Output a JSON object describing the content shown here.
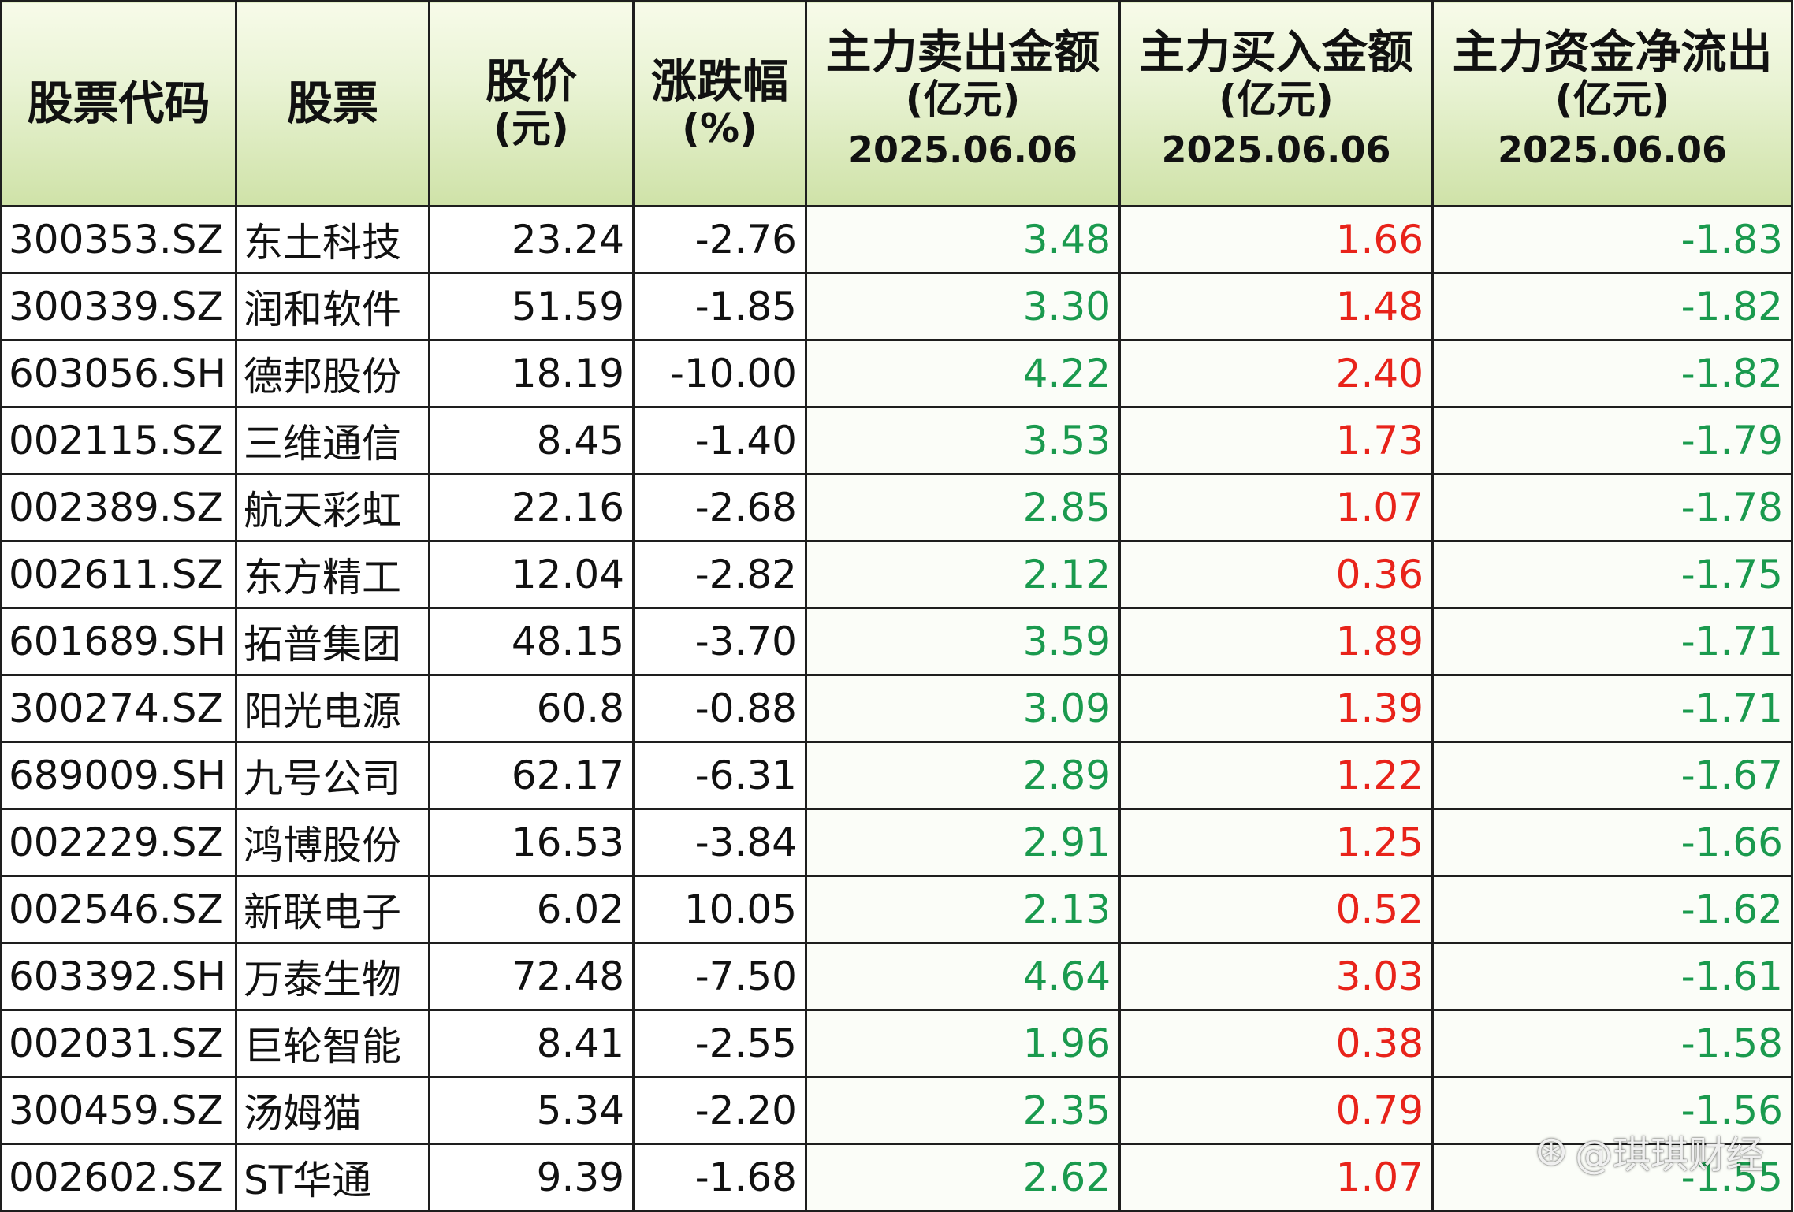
{
  "headers": {
    "code": "股票代码",
    "name": "股票",
    "price": {
      "line1": "股价",
      "line2": "(元)"
    },
    "change": {
      "line1": "涨跌幅",
      "line2": "(%)"
    },
    "sell": {
      "line1": "主力卖出金额",
      "line2": "(亿元)",
      "line3": "2025.06.06"
    },
    "buy": {
      "line1": "主力买入金额",
      "line2": "(亿元)",
      "line3": "2025.06.06"
    },
    "net": {
      "line1": "主力资金净流出",
      "line2": "(亿元)",
      "line3": "2025.06.06"
    }
  },
  "rows": [
    {
      "code": "300353.SZ",
      "name": "东土科技",
      "price": "23.24",
      "change": "-2.76",
      "sell": "3.48",
      "buy": "1.66",
      "net": "-1.83"
    },
    {
      "code": "300339.SZ",
      "name": "润和软件",
      "price": "51.59",
      "change": "-1.85",
      "sell": "3.30",
      "buy": "1.48",
      "net": "-1.82"
    },
    {
      "code": "603056.SH",
      "name": "德邦股份",
      "price": "18.19",
      "change": "-10.00",
      "sell": "4.22",
      "buy": "2.40",
      "net": "-1.82"
    },
    {
      "code": "002115.SZ",
      "name": "三维通信",
      "price": "8.45",
      "change": "-1.40",
      "sell": "3.53",
      "buy": "1.73",
      "net": "-1.79"
    },
    {
      "code": "002389.SZ",
      "name": "航天彩虹",
      "price": "22.16",
      "change": "-2.68",
      "sell": "2.85",
      "buy": "1.07",
      "net": "-1.78"
    },
    {
      "code": "002611.SZ",
      "name": "东方精工",
      "price": "12.04",
      "change": "-2.82",
      "sell": "2.12",
      "buy": "0.36",
      "net": "-1.75"
    },
    {
      "code": "601689.SH",
      "name": "拓普集团",
      "price": "48.15",
      "change": "-3.70",
      "sell": "3.59",
      "buy": "1.89",
      "net": "-1.71"
    },
    {
      "code": "300274.SZ",
      "name": "阳光电源",
      "price": "60.8",
      "change": "-0.88",
      "sell": "3.09",
      "buy": "1.39",
      "net": "-1.71"
    },
    {
      "code": "689009.SH",
      "name": "九号公司",
      "price": "62.17",
      "change": "-6.31",
      "sell": "2.89",
      "buy": "1.22",
      "net": "-1.67"
    },
    {
      "code": "002229.SZ",
      "name": "鸿博股份",
      "price": "16.53",
      "change": "-3.84",
      "sell": "2.91",
      "buy": "1.25",
      "net": "-1.66"
    },
    {
      "code": "002546.SZ",
      "name": "新联电子",
      "price": "6.02",
      "change": "10.05",
      "sell": "2.13",
      "buy": "0.52",
      "net": "-1.62"
    },
    {
      "code": "603392.SH",
      "name": "万泰生物",
      "price": "72.48",
      "change": "-7.50",
      "sell": "4.64",
      "buy": "3.03",
      "net": "-1.61"
    },
    {
      "code": "002031.SZ",
      "name": "巨轮智能",
      "price": "8.41",
      "change": "-2.55",
      "sell": "1.96",
      "buy": "0.38",
      "net": "-1.58"
    },
    {
      "code": "300459.SZ",
      "name": "汤姆猫",
      "price": "5.34",
      "change": "-2.20",
      "sell": "2.35",
      "buy": "0.79",
      "net": "-1.56"
    },
    {
      "code": "002602.SZ",
      "name": "ST华通",
      "price": "9.39",
      "change": "-1.68",
      "sell": "2.62",
      "buy": "1.07",
      "net": "-1.55"
    }
  ],
  "watermark": {
    "mark": "⊛",
    "text": "@琪琪财经"
  },
  "colors": {
    "sell": "#1a9a4e",
    "buy": "#e8231a",
    "net": "#1a9a4e",
    "header_bg": "#d9e9b8"
  }
}
